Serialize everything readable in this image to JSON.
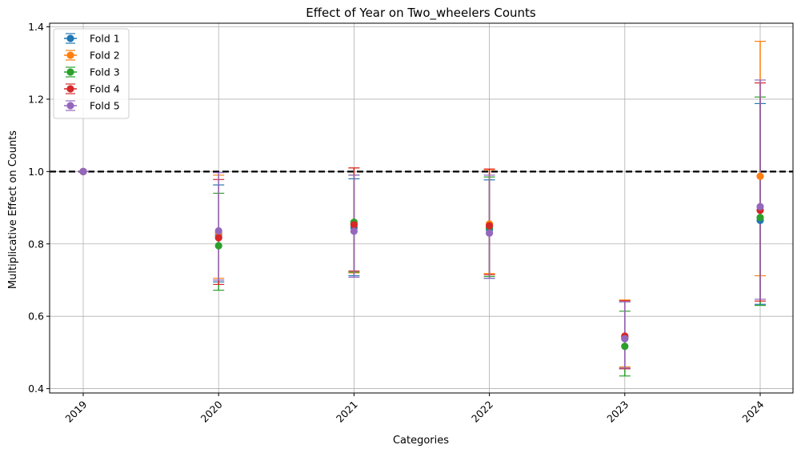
{
  "chart_data": {
    "type": "scatter",
    "title": "Effect of Year on Two_wheelers Counts",
    "xlabel": "Categories",
    "ylabel": "Multiplicative Effect on Counts",
    "categories": [
      "2019",
      "2020",
      "2021",
      "2022",
      "2023",
      "2024"
    ],
    "ylim": [
      0.388,
      1.41
    ],
    "yticks": [
      "0.4",
      "0.6",
      "0.8",
      "1.0",
      "1.2",
      "1.4"
    ],
    "grid": true,
    "legend_position": "top-left",
    "reference_line": 1.0,
    "series": [
      {
        "name": "Fold 1",
        "color": "#1f77b4",
        "values": [
          1.0,
          0.825,
          0.845,
          0.84,
          0.54,
          0.865
        ],
        "lower": [
          1.0,
          0.695,
          0.712,
          0.705,
          0.455,
          0.633
        ],
        "upper": [
          1.0,
          0.963,
          0.98,
          0.977,
          0.64,
          1.188
        ]
      },
      {
        "name": "Fold 2",
        "color": "#ff7f0e",
        "values": [
          1.0,
          0.83,
          0.855,
          0.855,
          0.545,
          0.987
        ],
        "lower": [
          1.0,
          0.705,
          0.72,
          0.718,
          0.46,
          0.712
        ],
        "upper": [
          1.0,
          0.99,
          1.01,
          1.005,
          0.645,
          1.36
        ]
      },
      {
        "name": "Fold 3",
        "color": "#2ca02c",
        "values": [
          1.0,
          0.795,
          0.86,
          0.845,
          0.517,
          0.873
        ],
        "lower": [
          1.0,
          0.672,
          0.722,
          0.71,
          0.435,
          0.63
        ],
        "upper": [
          1.0,
          0.94,
          0.99,
          0.985,
          0.614,
          1.206
        ]
      },
      {
        "name": "Fold 4",
        "color": "#d62728",
        "values": [
          1.0,
          0.817,
          0.853,
          0.85,
          0.545,
          0.893
        ],
        "lower": [
          1.0,
          0.688,
          0.725,
          0.715,
          0.455,
          0.642
        ],
        "upper": [
          1.0,
          0.978,
          1.01,
          1.007,
          0.643,
          1.245
        ]
      },
      {
        "name": "Fold 5",
        "color": "#9467bd",
        "values": [
          1.0,
          0.836,
          0.835,
          0.83,
          0.538,
          0.903
        ],
        "lower": [
          1.0,
          0.7,
          0.708,
          0.705,
          0.457,
          0.647
        ],
        "upper": [
          1.0,
          0.997,
          0.99,
          0.99,
          0.64,
          1.253
        ]
      }
    ]
  }
}
